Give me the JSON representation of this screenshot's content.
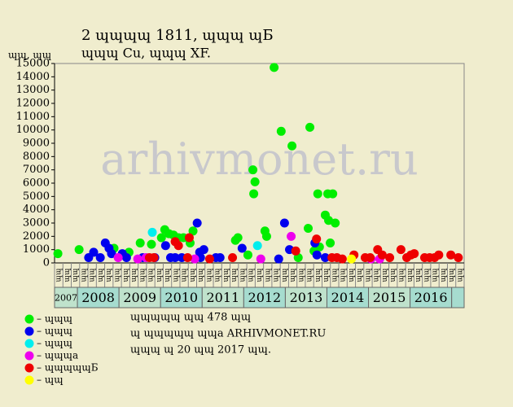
{
  "chart_data": {
    "type": "scatter",
    "title": "2 ɰɰɰɰ 1811, ɰɰɰ ɰБ",
    "subtitle": "ɰɰɰ Cu, ɰɰɰ XF.",
    "y_label": "ɰɰ, ɰɰ",
    "watermark": "arhivmonet.ru",
    "notes": [
      "ɰɰɰɰɰ ɰɰ 478 ɰɰ",
      "ɰ ɰɰɰɰɰ ɰɰa ARHIVMONET.RU",
      "ɰɰɰ ɰ 20 ɰɰ 2017 ɰɰ."
    ],
    "xlim": [
      2007.45,
      2017.3
    ],
    "xticks": [
      2007,
      2008,
      2009,
      2010,
      2011,
      2012,
      2013,
      2014,
      2015,
      2016
    ],
    "period_labels": [
      "ɰɰ",
      "ɰɰ",
      "ɰɰ",
      "ɰɰ",
      "ɰɰ",
      "ɰɰ",
      "ɰɰ",
      "ɰɰ",
      "ɰɰ",
      "ɰɰ",
      "ɰɰ",
      "ɰɰ",
      "ɰɰ",
      "ɰɰ",
      "ɰɰ",
      "ɰɰ",
      "ɰɰ",
      "ɰɰ",
      "ɰɰ",
      "ɰɰ",
      "ɰɰ",
      "ɰɰ",
      "ɰɰ",
      "ɰɰ",
      "ɰɰ",
      "ɰɰ",
      "ɰɰ",
      "ɰɰ",
      "ɰɰ",
      "ɰɰ",
      "ɰɰ",
      "ɰɰ",
      "ɰɰ",
      "ɰɰ",
      "ɰɰ",
      "ɰɰ",
      "ɰɰ",
      "ɰɰ",
      "ɰɰ",
      "ɰɰ",
      "ɰɰ",
      "ɰɰ",
      "ɰɰ",
      "ɰɰ",
      "ɰɰ",
      "ɰɰ",
      "ɰɰ",
      "ɰɰ",
      "ɰɰ"
    ],
    "ylim": [
      0,
      15000
    ],
    "yticks": [
      0,
      1000,
      2000,
      3000,
      4000,
      5000,
      6000,
      7000,
      8000,
      9000,
      10000,
      11000,
      12000,
      13000,
      14000,
      15000
    ],
    "series": [
      {
        "name": "– ɰɰɰ",
        "color": "#00ee00",
        "x": [
          2007.53,
          2008.04,
          2008.88,
          2009.24,
          2009.51,
          2009.78,
          2010.02,
          2010.1,
          2010.2,
          2010.31,
          2010.43,
          2010.55,
          2010.71,
          2010.78,
          2011.8,
          2011.86,
          2012.1,
          2012.22,
          2012.27,
          2012.24,
          2012.51,
          2012.55,
          2012.73,
          2012.9,
          2013.16,
          2013.31,
          2013.55,
          2013.59,
          2013.69,
          2013.78,
          2013.82,
          2013.96,
          2014.02,
          2014.04,
          2014.14,
          2014.08,
          2014.2
        ],
        "values": [
          700,
          1000,
          1100,
          800,
          1500,
          1400,
          1900,
          2500,
          2200,
          2100,
          1900,
          1900,
          1500,
          2400,
          1700,
          1900,
          600,
          7000,
          6100,
          5200,
          2400,
          2000,
          14700,
          9900,
          8800,
          400,
          2600,
          10200,
          900,
          5200,
          1200,
          3600,
          5200,
          3200,
          5200,
          1500,
          3000
        ]
      },
      {
        "name": "– ɰɰɰ",
        "color": "#0000ee",
        "x": [
          2008.27,
          2008.39,
          2008.55,
          2008.67,
          2008.76,
          2008.82,
          2009.08,
          2009.18,
          2009.57,
          2009.86,
          2010.12,
          2010.24,
          2010.35,
          2010.51,
          2010.88,
          2010.94,
          2011.04,
          2011.33,
          2011.43,
          2011.96,
          2012.84,
          2012.98,
          2013.1,
          2013.71,
          2013.76,
          2013.96,
          2010.96
        ],
        "values": [
          400,
          800,
          400,
          1500,
          1100,
          700,
          700,
          400,
          400,
          400,
          1300,
          400,
          400,
          400,
          3000,
          800,
          1000,
          400,
          400,
          1100,
          300,
          3000,
          1000,
          1500,
          600,
          400,
          400
        ]
      },
      {
        "name": "– ɰɰɰ",
        "color": "#00eeee",
        "x": [
          2009.8,
          2012.33
        ],
        "values": [
          2300,
          1300
        ]
      },
      {
        "name": "– ɰɰɰa",
        "color": "#ee00ee",
        "x": [
          2008.98,
          2009.45,
          2009.65,
          2010.82,
          2012.41,
          2013.14,
          2015.06,
          2015.27
        ],
        "values": [
          400,
          300,
          400,
          300,
          300,
          2000,
          300,
          300
        ]
      },
      {
        "name": "– ɰɰɰɰɰБ",
        "color": "#ee0000",
        "x": [
          2009.73,
          2009.84,
          2010.35,
          2010.43,
          2010.65,
          2010.69,
          2011.18,
          2011.73,
          2013.25,
          2013.75,
          2014.12,
          2014.24,
          2014.37,
          2014.65,
          2014.92,
          2015.04,
          2015.22,
          2015.33,
          2015.51,
          2015.78,
          2015.92,
          2016.02,
          2016.1,
          2016.35,
          2016.47,
          2016.59,
          2016.69,
          2016.98,
          2017.16
        ],
        "values": [
          400,
          400,
          1600,
          1300,
          400,
          1900,
          300,
          400,
          900,
          1800,
          400,
          400,
          300,
          600,
          400,
          400,
          1000,
          600,
          400,
          1000,
          400,
          600,
          700,
          400,
          400,
          400,
          600,
          600,
          400
        ]
      },
      {
        "name": "– ɰɰ",
        "color": "#ffff00",
        "x": [
          2014.59
        ],
        "values": [
          300
        ]
      }
    ]
  }
}
